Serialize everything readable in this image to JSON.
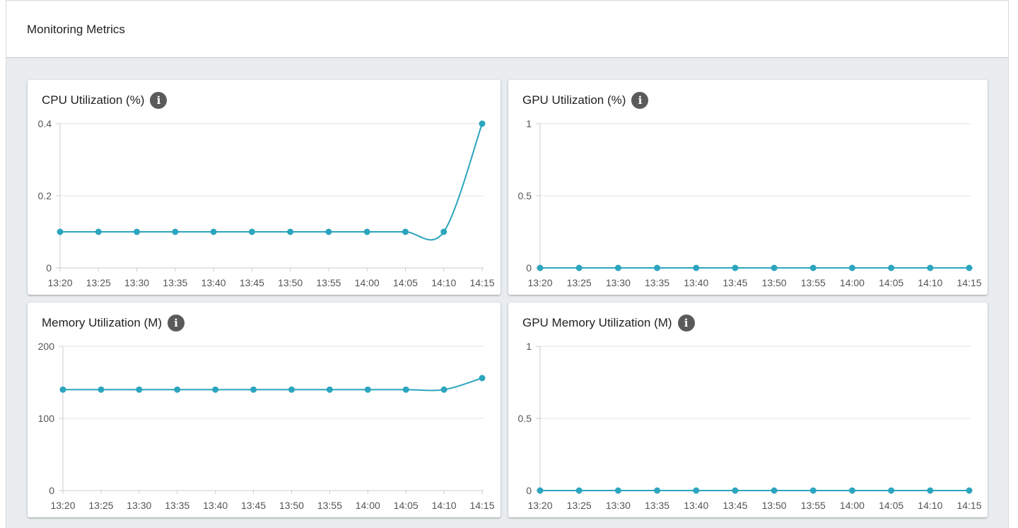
{
  "header": {
    "title": "Monitoring Metrics"
  },
  "colors": {
    "series": "#2ca5be",
    "grid": "#e3e3e3",
    "axis": "#cccccc",
    "info_icon": "#5a5a5a"
  },
  "cards": [
    {
      "id": "cpu",
      "title": "CPU Utilization (%)",
      "info_icon": "info-icon"
    },
    {
      "id": "gpu",
      "title": "GPU Utilization (%)",
      "info_icon": "info-icon"
    },
    {
      "id": "memory",
      "title": "Memory Utilization (M)",
      "info_icon": "info-icon"
    },
    {
      "id": "gpu-memory",
      "title": "GPU Memory Utilization (M)",
      "info_icon": "info-icon"
    }
  ],
  "chart_data": [
    {
      "type": "line",
      "title": "CPU Utilization (%)",
      "x": [
        "13:20",
        "13:25",
        "13:30",
        "13:35",
        "13:40",
        "13:45",
        "13:50",
        "13:55",
        "14:00",
        "14:05",
        "14:10",
        "14:15"
      ],
      "series": [
        {
          "values": [
            0.1,
            0.1,
            0.1,
            0.1,
            0.1,
            0.1,
            0.1,
            0.1,
            0.1,
            0.1,
            0.1,
            0.4
          ]
        }
      ],
      "ylim": [
        0,
        0.4
      ],
      "yticks": [
        "0",
        "0.2",
        "0.4"
      ],
      "grid": true
    },
    {
      "type": "line",
      "title": "GPU Utilization (%)",
      "x": [
        "13:20",
        "13:25",
        "13:30",
        "13:35",
        "13:40",
        "13:45",
        "13:50",
        "13:55",
        "14:00",
        "14:05",
        "14:10",
        "14:15"
      ],
      "series": [
        {
          "values": [
            0,
            0,
            0,
            0,
            0,
            0,
            0,
            0,
            0,
            0,
            0,
            0
          ]
        }
      ],
      "ylim": [
        0,
        1
      ],
      "yticks": [
        "0",
        "0.5",
        "1"
      ],
      "grid": true
    },
    {
      "type": "line",
      "title": "Memory Utilization (M)",
      "x": [
        "13:20",
        "13:25",
        "13:30",
        "13:35",
        "13:40",
        "13:45",
        "13:50",
        "13:55",
        "14:00",
        "14:05",
        "14:10",
        "14:15"
      ],
      "series": [
        {
          "values": [
            140,
            140,
            140,
            140,
            140,
            140,
            140,
            140,
            140,
            140,
            140,
            156
          ]
        }
      ],
      "ylim": [
        0,
        200
      ],
      "yticks": [
        "0",
        "100",
        "200"
      ],
      "grid": true
    },
    {
      "type": "line",
      "title": "GPU Memory Utilization (M)",
      "x": [
        "13:20",
        "13:25",
        "13:30",
        "13:35",
        "13:40",
        "13:45",
        "13:50",
        "13:55",
        "14:00",
        "14:05",
        "14:10",
        "14:15"
      ],
      "series": [
        {
          "values": [
            0,
            0,
            0,
            0,
            0,
            0,
            0,
            0,
            0,
            0,
            0,
            0
          ]
        }
      ],
      "ylim": [
        0,
        1
      ],
      "yticks": [
        "0",
        "0.5",
        "1"
      ],
      "grid": true
    }
  ]
}
